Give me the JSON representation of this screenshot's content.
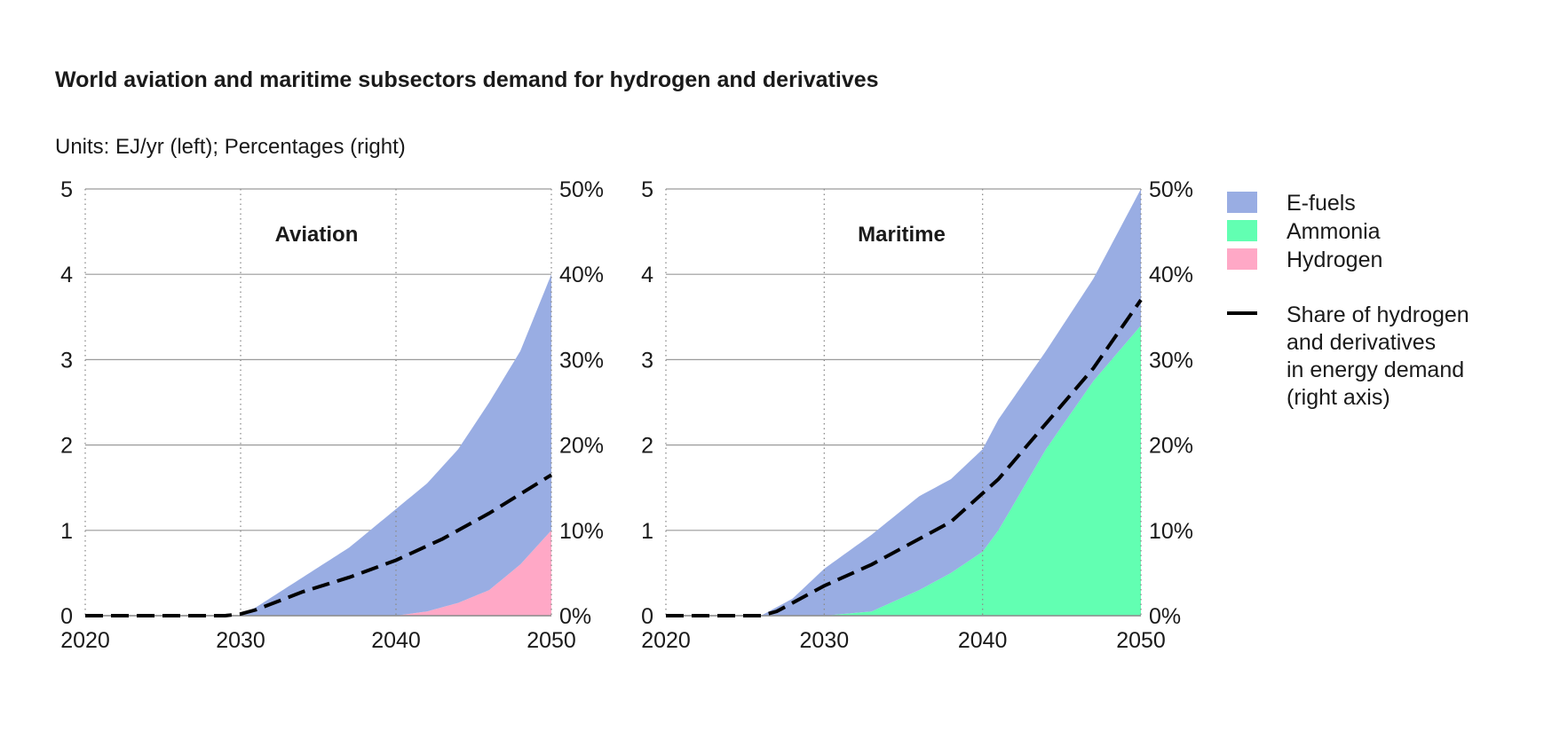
{
  "chart_title": "World aviation and maritime subsectors demand for hydrogen and derivatives",
  "chart_subtitle": "Units: EJ/yr (left); Percentages (right)",
  "legend": {
    "items": [
      {
        "key": "efuels",
        "label": "E-fuels",
        "color": "#99ADE3"
      },
      {
        "key": "ammonia",
        "label": "Ammonia",
        "color": "#62FFB2"
      },
      {
        "key": "hydrogen",
        "label": "Hydrogen",
        "color": "#FFA8C6"
      }
    ],
    "share_label": [
      "Share of hydrogen",
      "and derivatives",
      "in energy demand",
      "(right axis)"
    ],
    "share_color": "#000000"
  },
  "chart_data": [
    {
      "type": "area",
      "title": "Aviation",
      "x_ticks": [
        "2020",
        "2030",
        "2040",
        "2050"
      ],
      "xlim": [
        2020,
        2050
      ],
      "ylim": [
        0,
        5
      ],
      "y_ticks": [
        "0",
        "1",
        "2",
        "3",
        "4",
        "5"
      ],
      "y2lim": [
        0,
        50
      ],
      "y2_ticks": [
        "0%",
        "10%",
        "20%",
        "30%",
        "40%",
        "50%"
      ],
      "grid": true,
      "stack_order": [
        "hydrogen",
        "ammonia",
        "efuels"
      ],
      "series": [
        {
          "name": "Hydrogen",
          "key": "hydrogen",
          "color": "#FFA8C6",
          "x": [
            2020,
            2030,
            2040,
            2042,
            2044,
            2046,
            2048,
            2050
          ],
          "values": [
            0,
            0,
            0,
            0.05,
            0.15,
            0.3,
            0.6,
            1.0
          ]
        },
        {
          "name": "Ammonia",
          "key": "ammonia",
          "color": "#62FFB2",
          "x": [
            2020,
            2050
          ],
          "values": [
            0,
            0
          ]
        },
        {
          "name": "E-fuels",
          "key": "efuels",
          "color": "#99ADE3",
          "x": [
            2020,
            2030,
            2031,
            2034,
            2037,
            2040,
            2042,
            2044,
            2046,
            2048,
            2050
          ],
          "values": [
            0,
            0,
            0.1,
            0.45,
            0.8,
            1.25,
            1.5,
            1.8,
            2.2,
            2.5,
            3.0
          ]
        }
      ],
      "share_line": {
        "name": "Share of hydrogen and derivatives in energy demand",
        "x": [
          2020,
          2029,
          2030,
          2031,
          2034,
          2037,
          2040,
          2043,
          2046,
          2050
        ],
        "values": [
          0,
          0,
          0.2,
          0.7,
          2.8,
          4.5,
          6.5,
          9.0,
          12.0,
          16.5
        ]
      }
    },
    {
      "type": "area",
      "title": "Maritime",
      "x_ticks": [
        "2020",
        "2030",
        "2040",
        "2050"
      ],
      "xlim": [
        2020,
        2050
      ],
      "ylim": [
        0,
        5
      ],
      "y_ticks": [
        "0",
        "1",
        "2",
        "3",
        "4",
        "5"
      ],
      "y2lim": [
        0,
        50
      ],
      "y2_ticks": [
        "0%",
        "10%",
        "20%",
        "30%",
        "40%",
        "50%"
      ],
      "grid": true,
      "stack_order": [
        "hydrogen",
        "ammonia",
        "efuels"
      ],
      "series": [
        {
          "name": "Hydrogen",
          "key": "hydrogen",
          "color": "#FFA8C6",
          "x": [
            2020,
            2050
          ],
          "values": [
            0,
            0
          ]
        },
        {
          "name": "Ammonia",
          "key": "ammonia",
          "color": "#62FFB2",
          "x": [
            2020,
            2030,
            2033,
            2036,
            2038,
            2040,
            2041,
            2044,
            2047,
            2050
          ],
          "values": [
            0,
            0,
            0.05,
            0.3,
            0.5,
            0.75,
            1.0,
            1.95,
            2.75,
            3.4
          ]
        },
        {
          "name": "E-fuels",
          "key": "efuels",
          "color": "#99ADE3",
          "x": [
            2020,
            2026,
            2028,
            2030,
            2033,
            2036,
            2038,
            2040,
            2041,
            2044,
            2047,
            2050
          ],
          "values": [
            0,
            0,
            0.2,
            0.55,
            0.9,
            1.1,
            1.1,
            1.2,
            1.3,
            1.15,
            1.2,
            1.6
          ]
        }
      ],
      "share_line": {
        "name": "Share of hydrogen and derivatives in energy demand",
        "x": [
          2020,
          2026,
          2027,
          2028,
          2030,
          2033,
          2035,
          2038,
          2041,
          2044,
          2047,
          2050
        ],
        "values": [
          0,
          0,
          0.5,
          1.5,
          3.5,
          6.0,
          8.0,
          11.0,
          16.0,
          22.5,
          29.0,
          37.0
        ]
      }
    }
  ]
}
